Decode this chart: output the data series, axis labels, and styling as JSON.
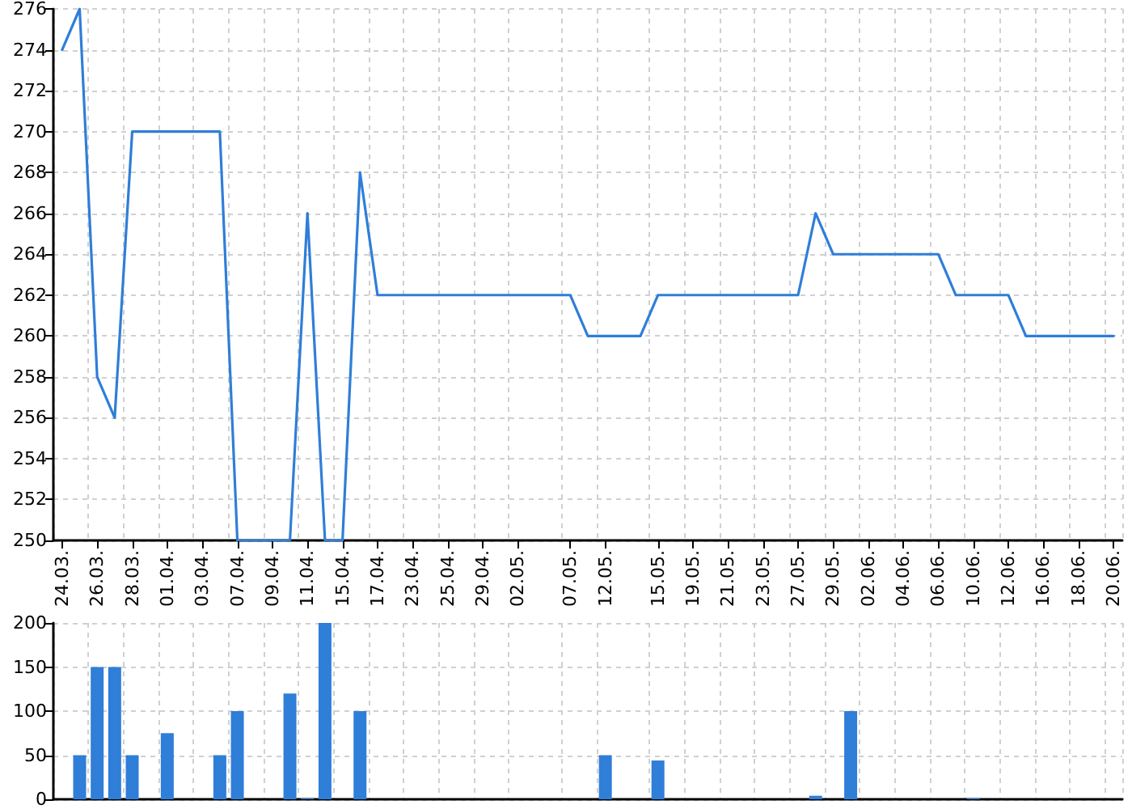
{
  "chart_data": [
    {
      "type": "line",
      "categories": [
        "24.03.",
        null,
        "26.03.",
        null,
        "28.03.",
        null,
        "01.04.",
        null,
        "03.04.",
        null,
        "07.04.",
        null,
        "09.04.",
        null,
        "11.04.",
        null,
        "15.04.",
        null,
        "17.04.",
        null,
        "23.04.",
        null,
        "25.04.",
        null,
        "29.04.",
        null,
        "02.05.",
        null,
        null,
        "07.05.",
        null,
        "12.05.",
        null,
        null,
        "15.05.",
        null,
        "19.05.",
        null,
        "21.05.",
        null,
        "23.05.",
        null,
        "27.05.",
        null,
        "29.05.",
        null,
        "02.06.",
        null,
        "04.06.",
        null,
        "06.06.",
        null,
        "10.06.",
        null,
        "12.06.",
        null,
        "16.06.",
        null,
        "18.06.",
        null,
        "20.06."
      ],
      "values": [
        274,
        276,
        258,
        256,
        270,
        270,
        270,
        270,
        270,
        270,
        250,
        250,
        250,
        250,
        266,
        250,
        250,
        268,
        262,
        262,
        262,
        262,
        262,
        262,
        262,
        262,
        262,
        262,
        262,
        262,
        260,
        260,
        260,
        260,
        262,
        262,
        262,
        262,
        262,
        262,
        262,
        262,
        262,
        266,
        264,
        264,
        264,
        264,
        264,
        264,
        264,
        262,
        262,
        262,
        262,
        260,
        260,
        260,
        260,
        260,
        260
      ],
      "color": "#2f7ed8",
      "ylim": [
        250,
        276
      ],
      "yticks": [
        250,
        252,
        254,
        256,
        258,
        260,
        262,
        264,
        266,
        268,
        270,
        272,
        274,
        276
      ],
      "grid": true,
      "marker": "none"
    },
    {
      "type": "bar",
      "categories": [
        "24.03.",
        null,
        "26.03.",
        null,
        "28.03.",
        null,
        "01.04.",
        null,
        "03.04.",
        null,
        "07.04.",
        null,
        "09.04.",
        null,
        "11.04.",
        null,
        "15.04.",
        null,
        "17.04.",
        null,
        "23.04.",
        null,
        "25.04.",
        null,
        "29.04.",
        null,
        "02.05.",
        null,
        null,
        "07.05.",
        null,
        "12.05.",
        null,
        null,
        "15.05.",
        null,
        "19.05.",
        null,
        "21.05.",
        null,
        "23.05.",
        null,
        "27.05.",
        null,
        "29.05.",
        null,
        "02.06.",
        null,
        "04.06.",
        null,
        "06.06.",
        null,
        "10.06.",
        null,
        "12.06.",
        null,
        "16.06.",
        null,
        "18.06.",
        null,
        "20.06."
      ],
      "values": [
        0,
        50,
        150,
        150,
        50,
        0,
        75,
        0,
        0,
        50,
        100,
        0,
        0,
        120,
        1,
        200,
        0,
        100,
        0,
        0,
        0,
        0,
        0,
        0,
        0,
        0,
        0,
        0,
        0,
        0,
        0,
        50,
        0,
        0,
        44,
        0,
        0,
        0,
        0,
        0,
        0,
        0,
        0,
        4,
        0,
        100,
        0,
        0,
        0,
        0,
        0,
        0,
        1,
        0,
        0,
        0,
        0,
        0,
        0,
        0,
        0
      ],
      "color": "#2f7ed8",
      "ylim": [
        0,
        200
      ],
      "yticks": [
        0,
        50,
        100,
        150,
        200
      ],
      "grid": true,
      "tick_labels": "y"
    }
  ]
}
